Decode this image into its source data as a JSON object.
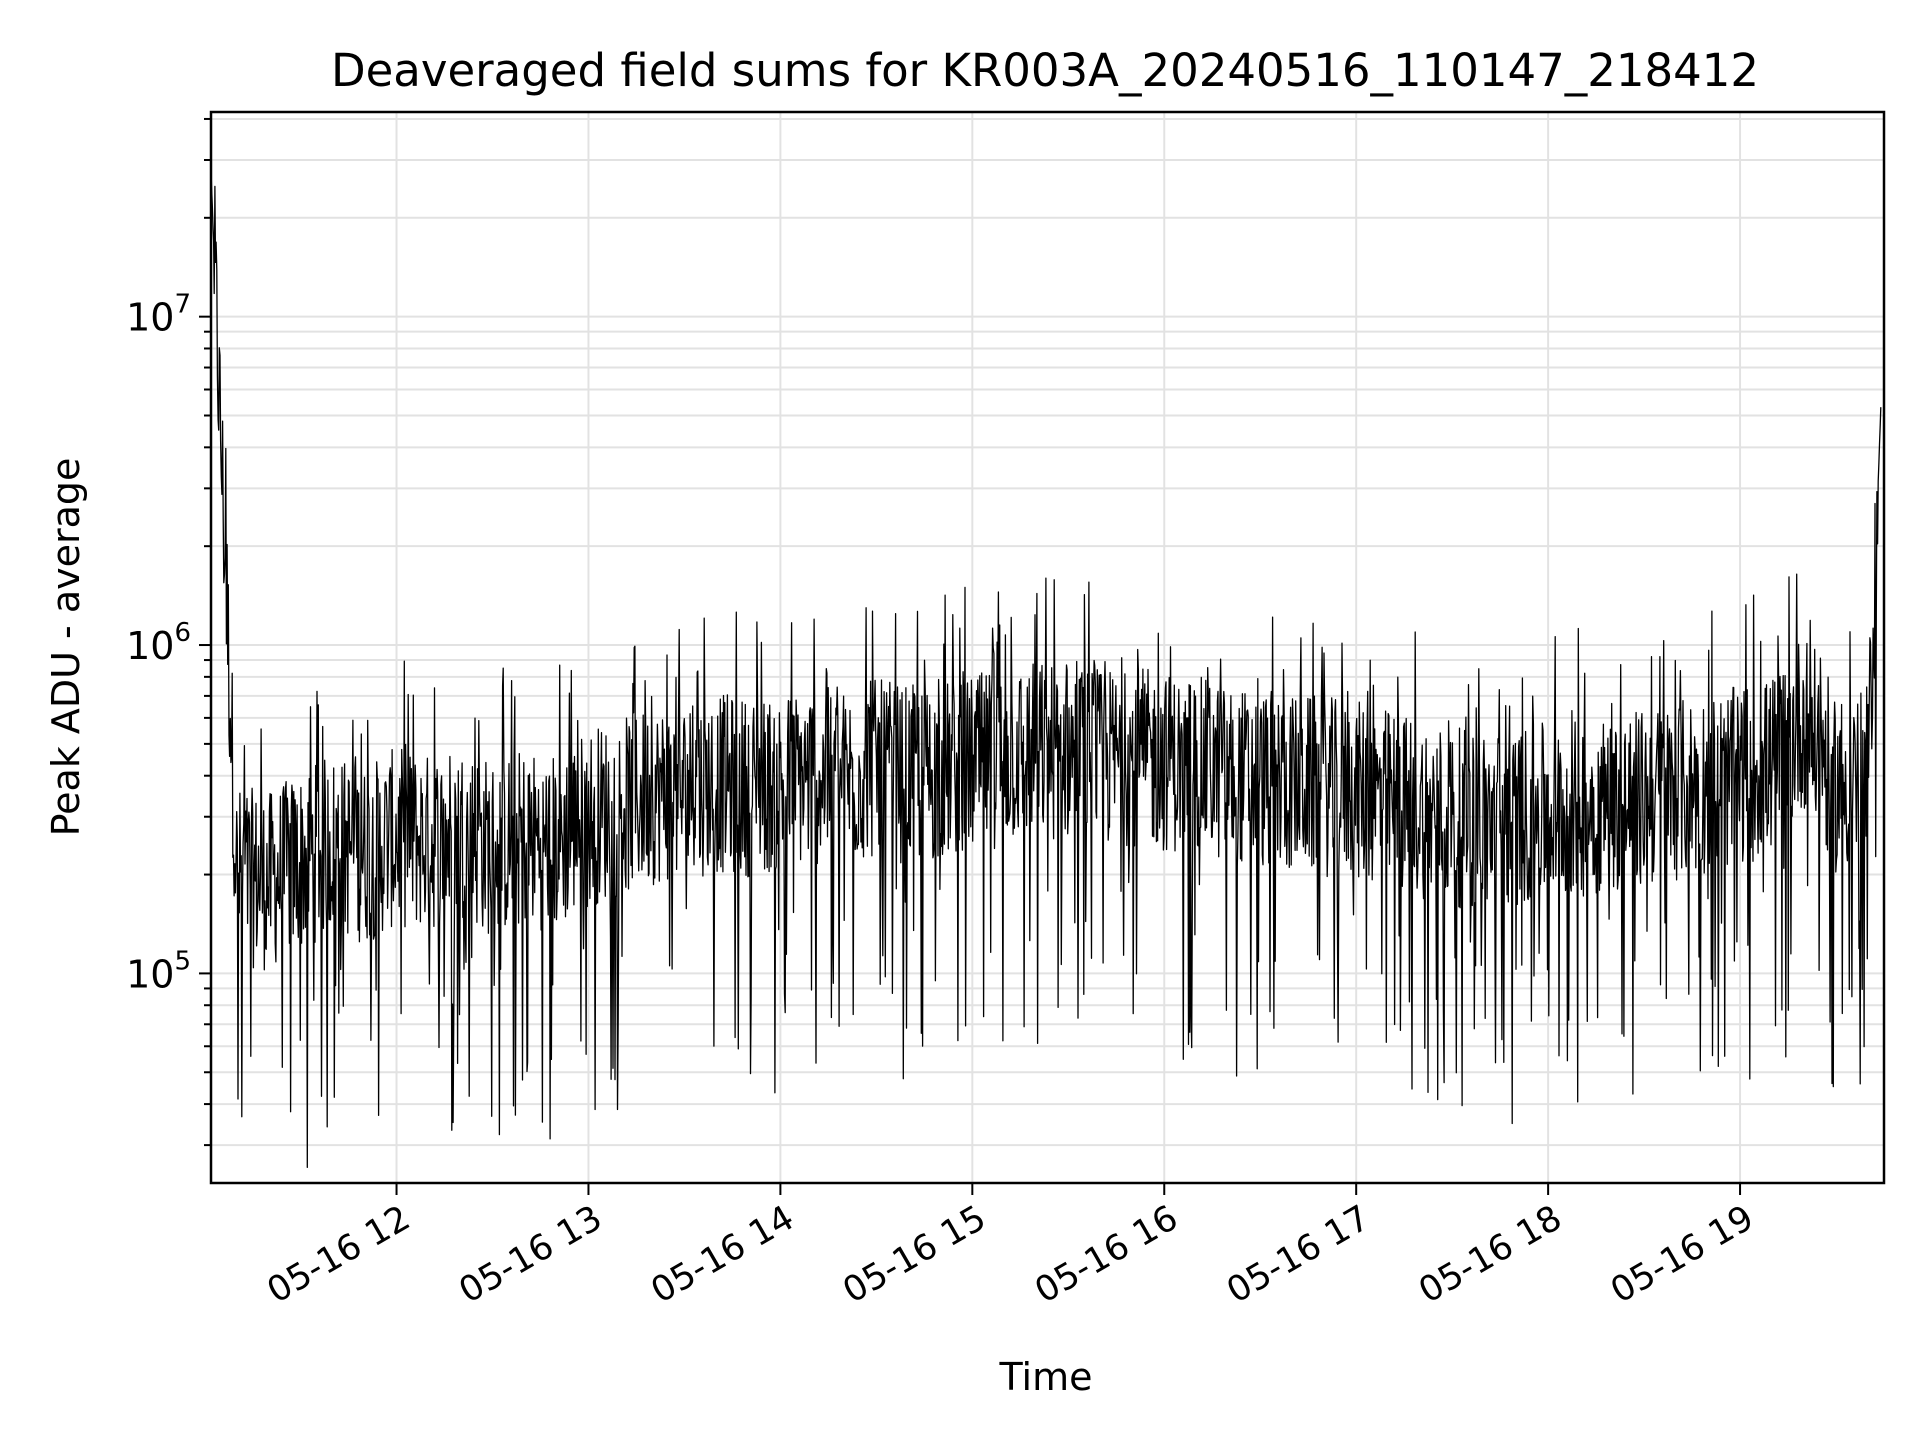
{
  "chart_data": {
    "type": "line",
    "title": "Deaveraged field sums for KR003A_20240516_110147_218412",
    "xlabel": "Time",
    "ylabel": "Peak ADU - average",
    "x_scale": "time",
    "y_scale": "log",
    "xlim": [
      "2024-05-16 11:02",
      "2024-05-16 19:45"
    ],
    "ylim": [
      23000,
      42000000
    ],
    "grid": true,
    "legend": "none",
    "x_tick_labels": [
      "05-16 12",
      "05-16 13",
      "05-16 14",
      "05-16 15",
      "05-16 16",
      "05-16 17",
      "05-16 18",
      "05-16 19"
    ],
    "y_tick_labels": [
      {
        "base": "10",
        "exp": "5"
      },
      {
        "base": "10",
        "exp": "6"
      },
      {
        "base": "10",
        "exp": "7"
      }
    ],
    "series": [
      {
        "color": "#000000",
        "x": [
          "2024-05-16 11:02",
          "2024-05-16 11:10",
          "2024-05-16 11:20",
          "2024-05-16 11:30",
          "2024-05-16 11:40",
          "2024-05-16 11:50",
          "2024-05-16 12:00",
          "2024-05-16 12:10",
          "2024-05-16 12:20",
          "2024-05-16 12:30",
          "2024-05-16 12:40",
          "2024-05-16 12:50",
          "2024-05-16 13:00",
          "2024-05-16 13:10",
          "2024-05-16 13:20",
          "2024-05-16 13:30",
          "2024-05-16 13:40",
          "2024-05-16 13:50",
          "2024-05-16 14:00",
          "2024-05-16 14:10",
          "2024-05-16 14:20",
          "2024-05-16 14:30",
          "2024-05-16 14:40",
          "2024-05-16 14:50",
          "2024-05-16 15:00",
          "2024-05-16 15:10",
          "2024-05-16 15:20",
          "2024-05-16 15:30",
          "2024-05-16 15:40",
          "2024-05-16 15:50",
          "2024-05-16 16:00",
          "2024-05-16 16:10",
          "2024-05-16 16:20",
          "2024-05-16 16:30",
          "2024-05-16 16:40",
          "2024-05-16 16:50",
          "2024-05-16 17:00",
          "2024-05-16 17:10",
          "2024-05-16 17:20",
          "2024-05-16 17:30",
          "2024-05-16 17:40",
          "2024-05-16 17:50",
          "2024-05-16 18:00",
          "2024-05-16 18:10",
          "2024-05-16 18:20",
          "2024-05-16 18:30",
          "2024-05-16 18:40",
          "2024-05-16 18:50",
          "2024-05-16 19:00",
          "2024-05-16 19:10",
          "2024-05-16 19:20",
          "2024-05-16 19:30",
          "2024-05-16 19:40",
          "2024-05-16 19:44"
        ],
        "y": [
          28000000,
          200000,
          190000,
          220000,
          250000,
          230000,
          260000,
          250000,
          270000,
          240000,
          260000,
          250000,
          300000,
          320000,
          350000,
          360000,
          380000,
          370000,
          380000,
          400000,
          390000,
          420000,
          400000,
          410000,
          430000,
          460000,
          480000,
          470000,
          450000,
          460000,
          440000,
          430000,
          400000,
          390000,
          380000,
          370000,
          360000,
          340000,
          320000,
          300000,
          290000,
          300000,
          310000,
          320000,
          330000,
          340000,
          360000,
          380000,
          400000,
          430000,
          600000,
          380000,
          400000,
          5300000
        ]
      }
    ]
  }
}
